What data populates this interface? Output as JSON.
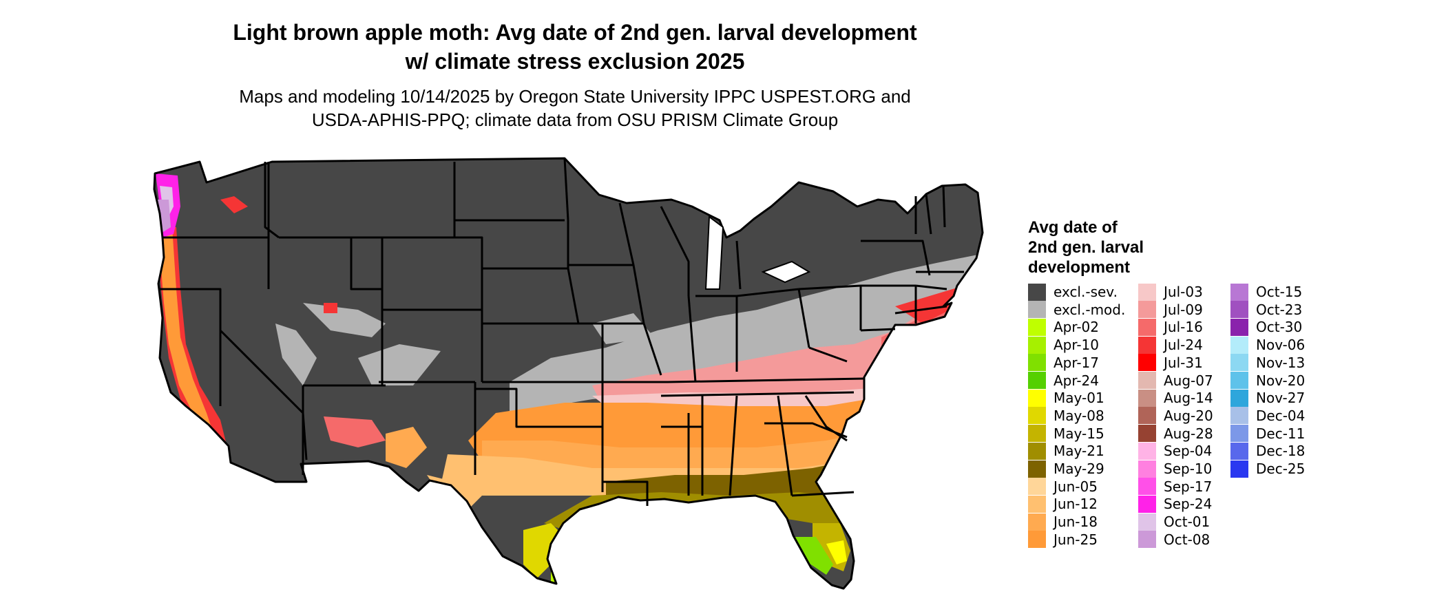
{
  "header": {
    "title_line1": "Light brown apple moth: Avg date of 2nd gen. larval development",
    "title_line2": "w/ climate stress exclusion 2025",
    "subtitle_line1": "Maps and modeling 10/14/2025 by Oregon State University IPPC USPEST.ORG and",
    "subtitle_line2": "USDA-APHIS-PPQ; climate data from OSU PRISM Climate Group"
  },
  "map": {
    "region": "Contiguous United States",
    "colors": {
      "excluded_severe": "#474747",
      "excluded_moderate": "#b4b4b4",
      "state_border": "#000000"
    }
  },
  "legend": {
    "title_line1": "Avg date of",
    "title_line2": "2nd gen. larval",
    "title_line3": "development",
    "items": [
      {
        "label": "excl.-sev.",
        "color": "#474747"
      },
      {
        "label": "excl.-mod.",
        "color": "#b4b4b4"
      },
      {
        "label": "Apr-02",
        "color": "#bfff00"
      },
      {
        "label": "Apr-10",
        "color": "#a6f000"
      },
      {
        "label": "Apr-17",
        "color": "#80e000"
      },
      {
        "label": "Apr-24",
        "color": "#55d000"
      },
      {
        "label": "May-01",
        "color": "#ffff00"
      },
      {
        "label": "May-08",
        "color": "#e0d800"
      },
      {
        "label": "May-15",
        "color": "#c4b400"
      },
      {
        "label": "May-21",
        "color": "#a08e00"
      },
      {
        "label": "May-29",
        "color": "#7d6200"
      },
      {
        "label": "Jun-05",
        "color": "#ffd699"
      },
      {
        "label": "Jun-12",
        "color": "#ffc070"
      },
      {
        "label": "Jun-18",
        "color": "#ffaa50"
      },
      {
        "label": "Jun-25",
        "color": "#ff9a38"
      },
      {
        "label": "Jul-03",
        "color": "#f7c8c8"
      },
      {
        "label": "Jul-09",
        "color": "#f49a9a"
      },
      {
        "label": "Jul-16",
        "color": "#f56a6a"
      },
      {
        "label": "Jul-24",
        "color": "#f53535"
      },
      {
        "label": "Jul-31",
        "color": "#ff0000"
      },
      {
        "label": "Aug-07",
        "color": "#e3b8b0"
      },
      {
        "label": "Aug-14",
        "color": "#c98f84"
      },
      {
        "label": "Aug-20",
        "color": "#b06458"
      },
      {
        "label": "Aug-28",
        "color": "#964232"
      },
      {
        "label": "Sep-04",
        "color": "#ffb3e6"
      },
      {
        "label": "Sep-10",
        "color": "#ff80e0"
      },
      {
        "label": "Sep-17",
        "color": "#ff50e8"
      },
      {
        "label": "Sep-24",
        "color": "#ff22e8"
      },
      {
        "label": "Oct-01",
        "color": "#e0c4e8"
      },
      {
        "label": "Oct-08",
        "color": "#cc99d8"
      },
      {
        "label": "Oct-15",
        "color": "#b877d4"
      },
      {
        "label": "Oct-23",
        "color": "#a050c0"
      },
      {
        "label": "Oct-30",
        "color": "#8a22ac"
      },
      {
        "label": "Nov-06",
        "color": "#b3ecfa"
      },
      {
        "label": "Nov-13",
        "color": "#8cd8f2"
      },
      {
        "label": "Nov-20",
        "color": "#5ec2ea"
      },
      {
        "label": "Nov-27",
        "color": "#2ea6dc"
      },
      {
        "label": "Dec-04",
        "color": "#a8c0e8"
      },
      {
        "label": "Dec-11",
        "color": "#7c98e8"
      },
      {
        "label": "Dec-18",
        "color": "#5868ec"
      },
      {
        "label": "Dec-25",
        "color": "#2a38f0"
      }
    ]
  }
}
